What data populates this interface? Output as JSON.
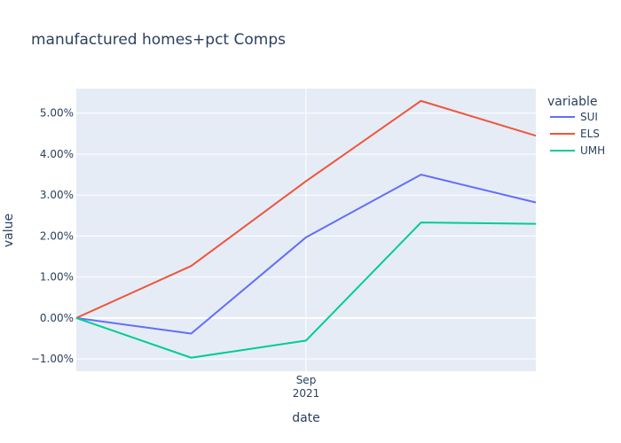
{
  "chart_data": {
    "type": "line",
    "title": "manufactured homes+pct Comps",
    "xlabel": "date",
    "ylabel": "value",
    "legend_title": "variable",
    "legend_position": "right",
    "x_ticks": [
      {
        "month": "Sep",
        "year": "2021"
      }
    ],
    "y_ticks": [
      "−1.00%",
      "0.00%",
      "1.00%",
      "2.00%",
      "3.00%",
      "4.00%",
      "5.00%"
    ],
    "ylim": [
      -1.3,
      5.6
    ],
    "grid": true,
    "series": [
      {
        "name": "SUI",
        "color": "#636efa",
        "values": [
          0.0,
          -0.38,
          1.97,
          3.5,
          2.82
        ]
      },
      {
        "name": "ELS",
        "color": "#ef553b",
        "values": [
          0.0,
          1.27,
          3.34,
          5.3,
          4.45
        ]
      },
      {
        "name": "UMH",
        "color": "#00cc96",
        "values": [
          0.0,
          -0.97,
          -0.55,
          2.33,
          2.3
        ]
      }
    ]
  }
}
